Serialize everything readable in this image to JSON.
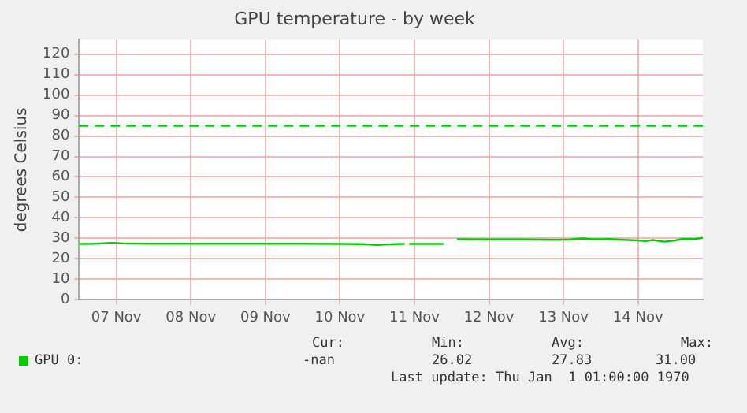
{
  "chart_data": {
    "type": "line",
    "title": "GPU temperature - by week",
    "ylabel": "degrees Celsius",
    "x": [
      "--11-06T12:00",
      "--11-06T16:48",
      "--11-06T22:48",
      "--11-07T02:24",
      "--11-07T12:00",
      "--11-08",
      "--11-08T12:00",
      "--11-09",
      "--11-09T12:00",
      "--11-10",
      "--11-10T07:12",
      "--11-10T12:00",
      "--11-10T14:24",
      "--11-10T18:00",
      "--11-10T20:53",
      "--11-10T21:36",
      "--11-10T22:19",
      "--11-11T09:22",
      "--11-11T11:31",
      "--11-11T13:41",
      "--11-12",
      "--11-12T12:00",
      "--11-12T21:36",
      "--11-13T02:24",
      "--11-13T06:00",
      "--11-13T09:36",
      "--11-13T14:24",
      "--11-13T19:12",
      "--11-14",
      "--11-14T02:24",
      "--11-14T04:48",
      "--11-14T08:24",
      "--11-14T12:00",
      "--11-14T14:24",
      "--11-14T18:00",
      "--11-14T20:53"
    ],
    "series": [
      {
        "name": "GPU 0:",
        "color": "#00cc00",
        "values": [
          27.3,
          27.4,
          27.8,
          27.5,
          27.4,
          27.4,
          27.4,
          27.4,
          27.4,
          27.3,
          27.2,
          26.8,
          27.0,
          27.2,
          27.3,
          null,
          27.3,
          27.3,
          null,
          29.6,
          29.5,
          29.5,
          29.3,
          29.5,
          30.0,
          29.6,
          29.7,
          29.3,
          29.0,
          28.7,
          29.2,
          28.4,
          29.0,
          29.8,
          29.7,
          30.3
        ]
      }
    ],
    "xlim": [
      "--11-06T12:00",
      "--11-14T20:53"
    ],
    "xticks": [
      {
        "value": "--11-07",
        "label": "07 Nov"
      },
      {
        "value": "--11-08",
        "label": "08 Nov"
      },
      {
        "value": "--11-09",
        "label": "09 Nov"
      },
      {
        "value": "--11-10",
        "label": "10 Nov"
      },
      {
        "value": "--11-11",
        "label": "11 Nov"
      },
      {
        "value": "--11-12",
        "label": "12 Nov"
      },
      {
        "value": "--11-13",
        "label": "13 Nov"
      },
      {
        "value": "--11-14",
        "label": "14 Nov"
      }
    ],
    "ylim": [
      0,
      127
    ],
    "yticks": [
      0,
      10,
      20,
      30,
      40,
      50,
      60,
      70,
      80,
      90,
      100,
      110,
      120
    ],
    "ref_lines": [
      {
        "axis": "y",
        "value": 85,
        "color": "#00cc00",
        "line_style": "dashed"
      }
    ],
    "grid": true,
    "legend": "bottom",
    "marker": "none",
    "line_style": "solid",
    "annotations": [
      "Cur:",
      "Min:",
      "Avg:",
      "Max:",
      "-nan",
      "26.02",
      "27.83",
      "31.00",
      "Last update: Thu Jan  1 01:00:00 1970"
    ]
  }
}
